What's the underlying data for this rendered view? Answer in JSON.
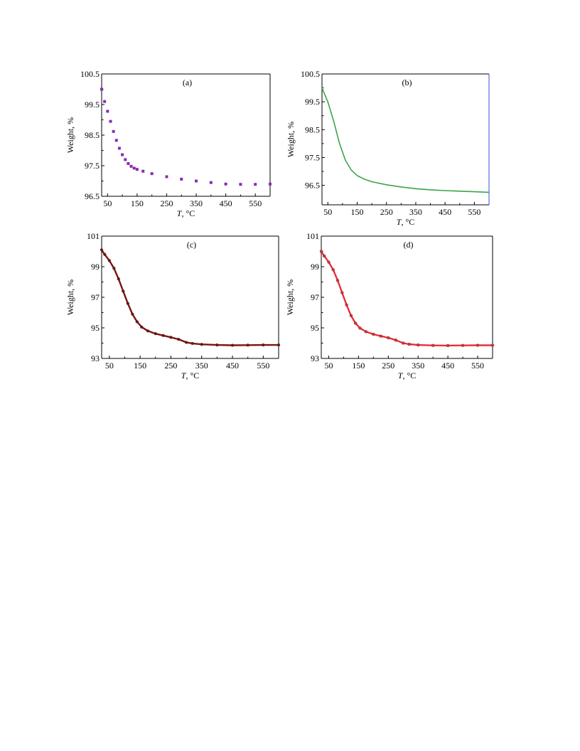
{
  "chart_data": [
    {
      "panel_label": "(a)",
      "type": "scatter",
      "xlabel_italic": "T",
      "xlabel_rest": ", °C",
      "ylabel": "Weight, %",
      "xlim": [
        30,
        600
      ],
      "ylim": [
        96.5,
        100.5
      ],
      "xticks": [
        "50",
        "150",
        "250",
        "350",
        "450",
        "550"
      ],
      "yticks": [
        "96.5",
        "97.5",
        "98.5",
        "99.5",
        "100.5"
      ],
      "color": "#8a2bb0",
      "marker": "square",
      "series": [
        {
          "x": [
            30,
            40,
            50,
            60,
            70,
            80,
            90,
            100,
            110,
            120,
            130,
            140,
            150,
            170,
            200,
            250,
            300,
            350,
            400,
            450,
            500,
            550,
            600
          ],
          "y": [
            100.0,
            99.6,
            99.28,
            98.95,
            98.62,
            98.33,
            98.07,
            97.86,
            97.7,
            97.57,
            97.48,
            97.42,
            97.38,
            97.32,
            97.24,
            97.14,
            97.06,
            97.0,
            96.95,
            96.9,
            96.89,
            96.89,
            96.9
          ]
        }
      ]
    },
    {
      "panel_label": "(b)",
      "type": "line",
      "xlabel_italic": "T",
      "xlabel_rest": ", °C",
      "ylabel": "Weight, %",
      "xlim": [
        30,
        600
      ],
      "ylim": [
        95.8,
        100.5
      ],
      "xticks": [
        "50",
        "150",
        "250",
        "350",
        "450",
        "550"
      ],
      "yticks": [
        "96.5",
        "97.5",
        "98.5",
        "99.5",
        "100.5"
      ],
      "color": "#3aa548",
      "marker": "none",
      "series": [
        {
          "x": [
            30,
            50,
            70,
            90,
            110,
            130,
            150,
            175,
            200,
            250,
            300,
            350,
            400,
            450,
            500,
            550,
            600
          ],
          "y": [
            100.0,
            99.5,
            98.8,
            98.0,
            97.4,
            97.05,
            96.85,
            96.72,
            96.63,
            96.52,
            96.44,
            96.38,
            96.34,
            96.31,
            96.29,
            96.27,
            96.25
          ]
        }
      ]
    },
    {
      "panel_label": "(c)",
      "type": "line",
      "xlabel_italic": "T",
      "xlabel_rest": ", °C",
      "ylabel": "Weight, %",
      "xlim": [
        25,
        600
      ],
      "ylim": [
        93,
        101
      ],
      "xticks": [
        "50",
        "150",
        "250",
        "350",
        "450",
        "550"
      ],
      "yticks": [
        "93",
        "95",
        "97",
        "99",
        "101"
      ],
      "color": "#7a1414",
      "marker": "dot",
      "series": [
        {
          "x": [
            25,
            35,
            50,
            65,
            80,
            95,
            110,
            125,
            140,
            155,
            175,
            200,
            225,
            250,
            275,
            300,
            320,
            350,
            400,
            450,
            500,
            550,
            600
          ],
          "y": [
            100.1,
            99.8,
            99.4,
            98.9,
            98.2,
            97.4,
            96.6,
            95.9,
            95.4,
            95.05,
            94.8,
            94.62,
            94.5,
            94.38,
            94.25,
            94.05,
            93.98,
            93.92,
            93.88,
            93.86,
            93.87,
            93.88,
            93.88
          ]
        }
      ]
    },
    {
      "panel_label": "(d)",
      "type": "line",
      "xlabel_italic": "T",
      "xlabel_rest": ", °C",
      "ylabel": "Weight, %",
      "xlim": [
        25,
        600
      ],
      "ylim": [
        93,
        101
      ],
      "xticks": [
        "50",
        "150",
        "250",
        "350",
        "450",
        "550"
      ],
      "yticks": [
        "93",
        "95",
        "97",
        "99",
        "101"
      ],
      "color": "#e8303a",
      "marker": "dot",
      "series": [
        {
          "x": [
            25,
            35,
            50,
            65,
            80,
            95,
            110,
            125,
            140,
            155,
            175,
            200,
            225,
            250,
            275,
            300,
            320,
            350,
            400,
            450,
            500,
            550,
            600
          ],
          "y": [
            100.0,
            99.7,
            99.3,
            98.8,
            98.1,
            97.3,
            96.5,
            95.8,
            95.3,
            94.98,
            94.75,
            94.58,
            94.46,
            94.35,
            94.2,
            94.0,
            93.93,
            93.88,
            93.85,
            93.84,
            93.85,
            93.86,
            93.86
          ]
        }
      ]
    }
  ]
}
